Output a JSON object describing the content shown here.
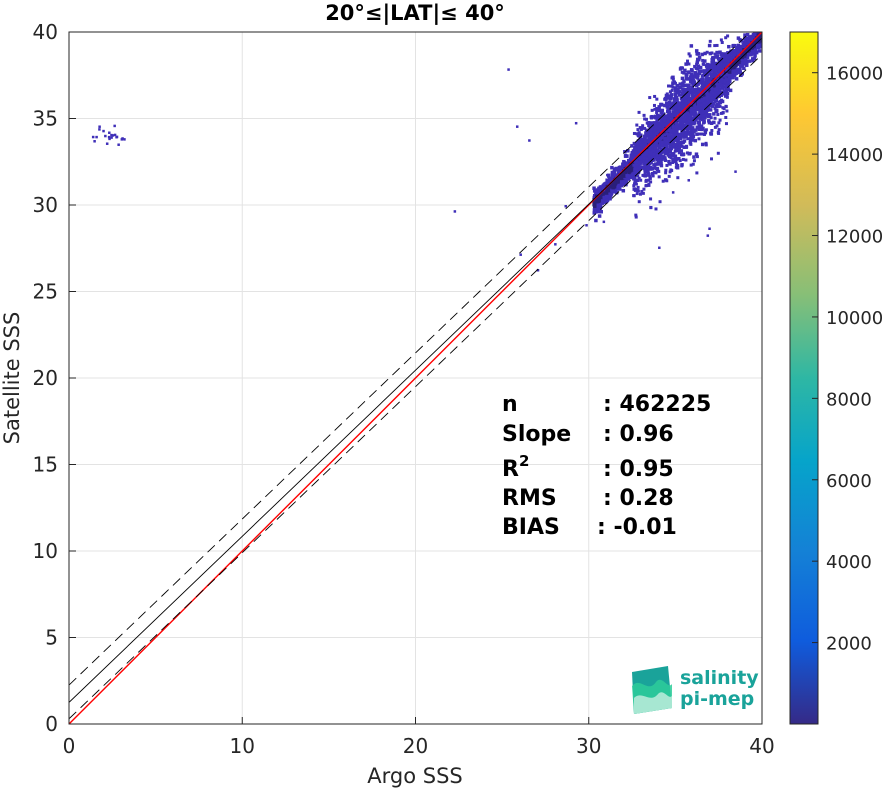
{
  "chart_data": {
    "type": "heatmap",
    "title": "20°≤|LAT|≤ 40°",
    "xlabel": "Argo SSS",
    "ylabel": "Satellite SSS",
    "xlim": [
      0,
      40
    ],
    "ylim": [
      0,
      40
    ],
    "xticks": [
      "0",
      "10",
      "20",
      "30",
      "40"
    ],
    "yticks": [
      "0",
      "5",
      "10",
      "15",
      "20",
      "25",
      "30",
      "35",
      "40"
    ],
    "grid": true,
    "colorbar": {
      "ticks": [
        "2000",
        "4000",
        "6000",
        "8000",
        "10000",
        "12000",
        "14000",
        "16000"
      ],
      "tick_values": [
        2000,
        4000,
        6000,
        8000,
        10000,
        12000,
        14000,
        16000
      ],
      "range": [
        0,
        17000
      ],
      "colormap": "parula"
    },
    "density_clusters": [
      {
        "x": 35.8,
        "y": 36.0,
        "density": "high"
      },
      {
        "x": 33.0,
        "y": 33.0,
        "density": "high"
      },
      {
        "x": 38.5,
        "y": 38.8,
        "density": "high"
      },
      {
        "x": 36.5,
        "y": 34.5,
        "density": "medium"
      },
      {
        "x": 31.5,
        "y": 31.5,
        "density": "medium"
      },
      {
        "x": 1.8,
        "y": 34.2,
        "density": "low"
      }
    ],
    "reference_lines": [
      {
        "name": "1:1",
        "color": "#ff0000",
        "style": "solid",
        "x": [
          0,
          40
        ],
        "y": [
          0,
          40
        ]
      },
      {
        "name": "fit",
        "color": "#000000",
        "style": "solid",
        "x": [
          0,
          40
        ],
        "y": [
          1.25,
          39.65
        ]
      },
      {
        "name": "fit+",
        "color": "#000000",
        "style": "dashed",
        "x": [
          0,
          40
        ],
        "y": [
          2.25,
          40.65
        ]
      },
      {
        "name": "fit-",
        "color": "#000000",
        "style": "dashed",
        "x": [
          0,
          40
        ],
        "y": [
          0.3,
          38.7
        ]
      }
    ],
    "stats": [
      {
        "label": "n",
        "value": ": 462225"
      },
      {
        "label": "Slope",
        "value": ": 0.96"
      },
      {
        "label": "R2",
        "value": ": 0.95"
      },
      {
        "label": "RMS",
        "value": ": 0.28"
      },
      {
        "label": "BIAS",
        "value": ": -0.01"
      }
    ]
  },
  "logo": {
    "line1": "salinity",
    "line2": "pi-mep"
  },
  "colors": {
    "scatter": "#3f2fb8",
    "scatter_dense": "#2a1f7a",
    "one_to_one": "#ff0000",
    "logo_teal": "#1aa39a",
    "logo_green": "#2ecc9a"
  }
}
